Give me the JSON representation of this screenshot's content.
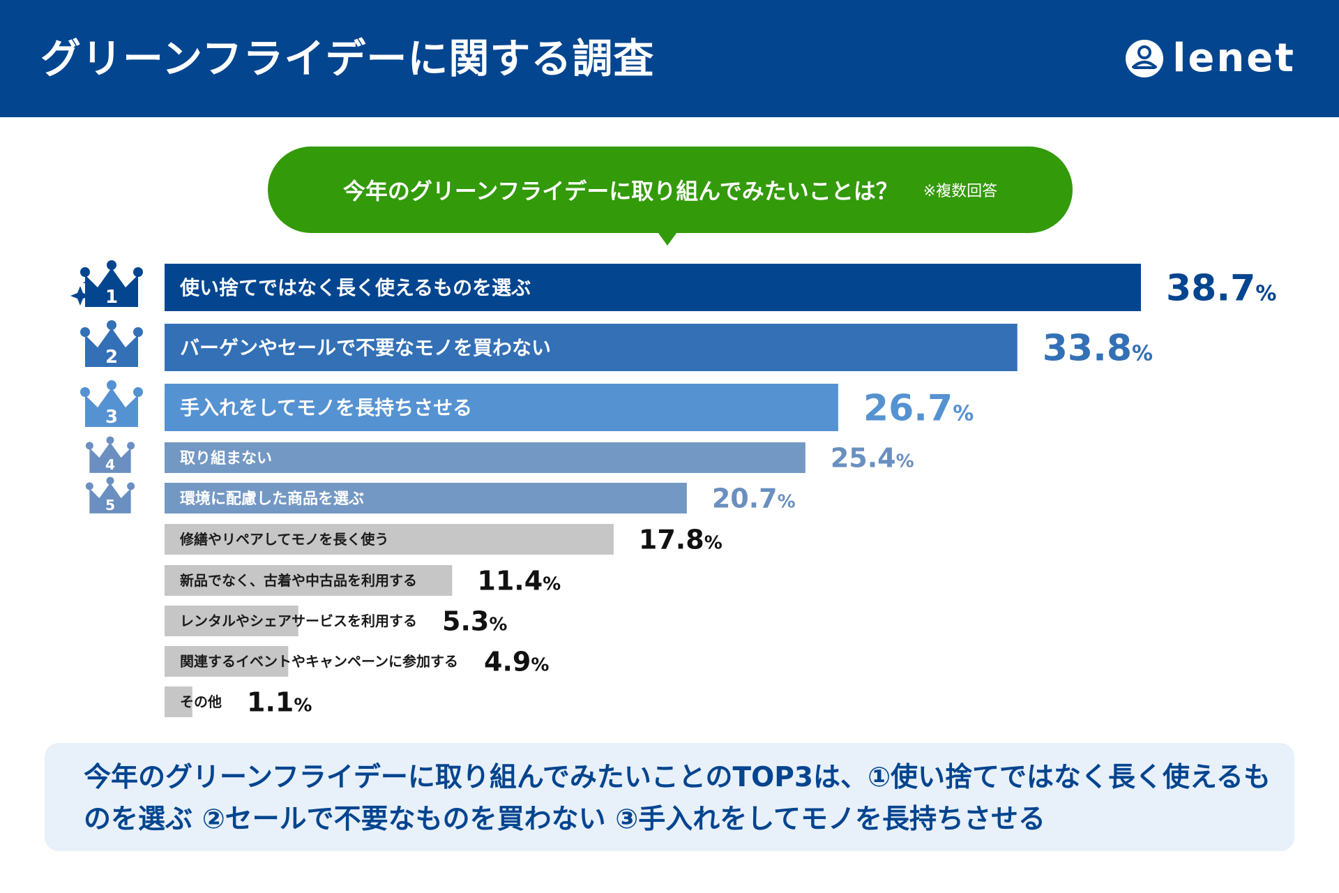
{
  "header": {
    "title": "グリーンフライデーに関する調査",
    "logo_text": "lenet",
    "background": "#03458f"
  },
  "question": {
    "text": "今年のグリーンフライデーに取り組んでみたいことは？",
    "note": "※複数回答",
    "color": "#339a0a"
  },
  "chart_data": {
    "type": "bar",
    "orientation": "horizontal",
    "title": "今年のグリーンフライデーに取り組んでみたいことは？",
    "categories": [
      "使い捨てではなく長く使えるものを選ぶ",
      "バーゲンやセールで不要なモノを買わない",
      "手入れをしてモノを長持ちさせる",
      "取り組まない",
      "環境に配慮した商品を選ぶ",
      "修繕やリペアしてモノを長く使う",
      "新品でなく、古着や中古品を利用する",
      "レンタルやシェアサービスを利用する",
      "関連するイベントやキャンペーンに参加する",
      "その他"
    ],
    "values": [
      38.7,
      33.8,
      26.7,
      25.4,
      20.7,
      17.8,
      11.4,
      5.3,
      4.9,
      1.1
    ],
    "value_labels": [
      "38.7",
      "33.8",
      "26.7",
      "25.4",
      "20.7",
      "17.8",
      "11.4",
      "5.3",
      "4.9",
      "1.1"
    ],
    "unit": "%",
    "ranks": [
      "1",
      "2",
      "3",
      "4",
      "5"
    ],
    "colors": [
      "#03458f",
      "#3370b6",
      "#5592d1",
      "#7498c4",
      "#7498c4",
      "#c6c6c6",
      "#c6c6c6",
      "#c6c6c6",
      "#c6c6c6",
      "#c6c6c6"
    ],
    "value_colors": [
      "#03458f",
      "#3370b6",
      "#5592d1",
      "#6a8fc0",
      "#6a8fc0",
      "#111111",
      "#111111",
      "#111111",
      "#111111",
      "#111111"
    ],
    "xlim": [
      0,
      38.7
    ]
  },
  "summary": {
    "text": "今年のグリーンフライデーに取り組んでみたいことのTOP3は、①使い捨てではなく長く使えるものを選ぶ ②セールで不要なものを買わない ③手入れをしてモノを長持ちさせる"
  }
}
